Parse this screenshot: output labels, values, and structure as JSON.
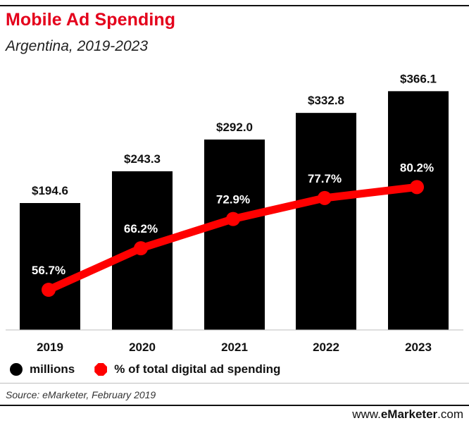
{
  "header": {
    "title": "Mobile Ad Spending",
    "subtitle": "Argentina, 2019-2023"
  },
  "colors": {
    "bars": "#000000",
    "line": "#ff0000",
    "title": "#e4001b"
  },
  "chart_data": {
    "type": "bar",
    "categories": [
      "2019",
      "2020",
      "2021",
      "2022",
      "2023"
    ],
    "series": [
      {
        "name": "millions",
        "type": "bar",
        "values": [
          194.6,
          243.3,
          292.0,
          332.8,
          366.1
        ],
        "labels": [
          "$194.6",
          "$243.3",
          "$292.0",
          "$332.8",
          "$366.1"
        ]
      },
      {
        "name": "% of total digital ad spending",
        "type": "line",
        "values": [
          56.7,
          66.2,
          72.9,
          77.7,
          80.2
        ],
        "labels": [
          "56.7%",
          "66.2%",
          "72.9%",
          "77.7%",
          "80.2%"
        ]
      }
    ],
    "bar_axis_range": [
      0,
      400
    ],
    "line_axis_range": [
      40,
      100
    ],
    "grid": false
  },
  "legend": {
    "bar_label": "millions",
    "line_label": "% of total digital ad spending"
  },
  "footer": {
    "source": "Source: eMarketer, February 2019",
    "brand_prefix": "www.",
    "brand_name": "eMarketer",
    "brand_suffix": ".com"
  }
}
